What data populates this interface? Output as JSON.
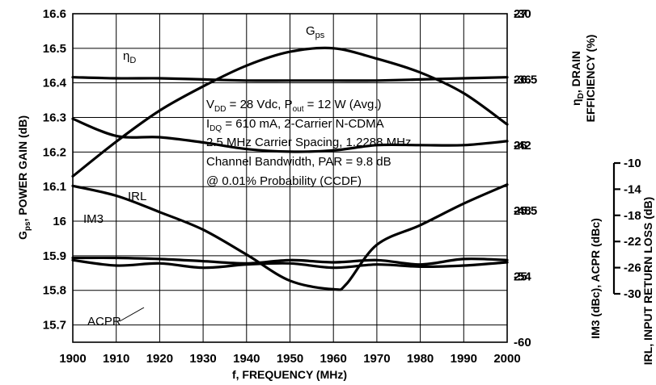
{
  "chart_data": {
    "type": "line",
    "xlabel": "f, FREQUENCY (MHz)",
    "x_ticks": [
      "1900",
      "1910",
      "1920",
      "1930",
      "1940",
      "1950",
      "1960",
      "1970",
      "1980",
      "1990",
      "2000"
    ],
    "xlim": [
      1900,
      2000
    ],
    "grid": true,
    "left_axis": {
      "label_main": "G",
      "label_sub": "ps",
      "label_rest": ", POWER GAIN (dB)",
      "ylim": [
        15.65,
        16.6
      ],
      "ticks": [
        "16.6",
        "16.5",
        "16.4",
        "16.3",
        "16.2",
        "16.1",
        "16",
        "15.9",
        "15.8",
        "15.7"
      ]
    },
    "right_axis_efficiency": {
      "label_line1": "η",
      "label_sub": "D",
      "label_line1_rest": ", DRAIN",
      "label_line2": "EFFICIENCY (%)",
      "ylim": [
        24.5,
        27
      ],
      "ticks": [
        "27",
        "26.5",
        "26",
        "25.5",
        "25"
      ]
    },
    "right_axis_im3": {
      "label": "IM3 (dBc), ACPR (dBc)",
      "ylim": [
        -60,
        -30
      ],
      "ticks": [
        "-30",
        "-36",
        "-42",
        "-48",
        "-54",
        "-60"
      ]
    },
    "right_axis_irl": {
      "label": "IRL, INPUT RETURN LOSS (dB)",
      "ylim": [
        -30,
        -10
      ],
      "ticks": [
        "-10",
        "-14",
        "-18",
        "-22",
        "-26",
        "-30"
      ]
    },
    "series": [
      {
        "name": "Gps",
        "axis": "gain",
        "x": [
          1900,
          1910,
          1920,
          1930,
          1940,
          1950,
          1960,
          1970,
          1980,
          1990,
          2000
        ],
        "y": [
          16.13,
          16.23,
          16.32,
          16.39,
          16.45,
          16.49,
          16.5,
          16.47,
          16.43,
          16.37,
          16.28
        ]
      },
      {
        "name": "ηD",
        "axis": "eff",
        "x": [
          1900,
          1910,
          1920,
          1930,
          1940,
          1950,
          1960,
          1970,
          1980,
          1990,
          2000
        ],
        "y": [
          26.2,
          26.07,
          26.06,
          26.02,
          25.97,
          25.95,
          25.96,
          26.0,
          26.0,
          26.0,
          26.03
        ]
      },
      {
        "name": "IRL",
        "axis": "irl",
        "x": [
          1900,
          1910,
          1920,
          1930,
          1940,
          1950,
          1960,
          1963,
          1970,
          1980,
          1990,
          2000
        ],
        "y": [
          -13.5,
          -15.0,
          -17.5,
          -20.2,
          -24.0,
          -28.0,
          -29.3,
          -28.5,
          -22.5,
          -19.5,
          -16.2,
          -13.3
        ]
      },
      {
        "name": "IM3",
        "axis": "im3",
        "x": [
          1900,
          1910,
          1920,
          1930,
          1940,
          1950,
          1960,
          1970,
          1980,
          1990,
          2000
        ],
        "y": [
          -35.8,
          -35.9,
          -35.9,
          -36.0,
          -36.1,
          -36.1,
          -36.1,
          -36.1,
          -36.0,
          -35.9,
          -35.8
        ]
      },
      {
        "name": "ACPR",
        "axis": "im3",
        "x": [
          1900,
          1910,
          1920,
          1930,
          1940,
          1950,
          1960,
          1970,
          1980,
          1990,
          2000
        ],
        "y": [
          -52.3,
          -52.3,
          -52.4,
          -52.6,
          -52.8,
          -52.5,
          -52.7,
          -52.5,
          -52.9,
          -52.4,
          -52.5
        ]
      },
      {
        "name": "ACPR-2",
        "axis": "im3",
        "x": [
          1900,
          1910,
          1920,
          1930,
          1940,
          1950,
          1960,
          1970,
          1980,
          1990,
          2000
        ],
        "y": [
          -52.5,
          -53.0,
          -52.8,
          -53.2,
          -52.9,
          -52.8,
          -53.2,
          -52.9,
          -53.1,
          -53.0,
          -52.7
        ]
      }
    ],
    "series_labels": {
      "gps_main": "G",
      "gps_sub": "ps",
      "eta_main": "η",
      "eta_sub": "D",
      "irl": "IRL",
      "im3": "IM3",
      "acpr": "ACPR"
    },
    "annotation": {
      "line1_a": "V",
      "line1_sub1": "DD",
      "line1_b": " = 28 Vdc, P",
      "line1_sub2": "out",
      "line1_c": " = 12 W (Avg.)",
      "line2_a": "I",
      "line2_sub": "DQ",
      "line2_b": " = 610 mA, 2-Carrier N-CDMA",
      "line3": "2.5 MHz Carrier Spacing, 1.2288 MHz",
      "line4": "Channel Bandwidth, PAR = 9.8 dB",
      "line5": "@ 0.01% Probability (CCDF)"
    }
  }
}
